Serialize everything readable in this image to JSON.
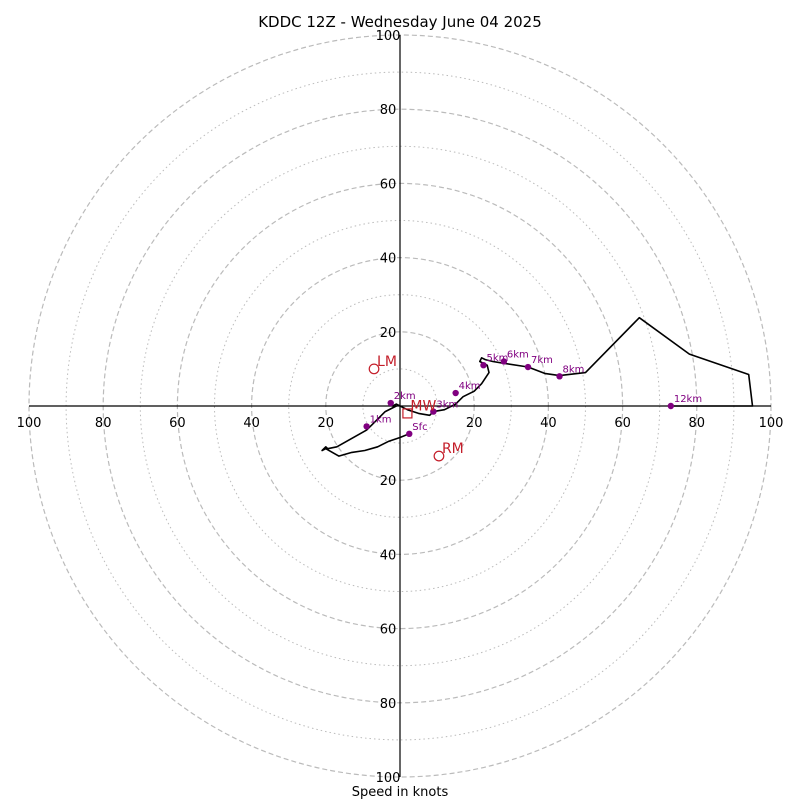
{
  "chart_data": {
    "type": "line",
    "title": "KDDC 12Z - Wednesday June 04 2025",
    "xlabel": "Speed in knots",
    "range": [
      -100,
      100
    ],
    "grid": {
      "major_rings": [
        20,
        40,
        60,
        80,
        100
      ],
      "minor_rings": [
        10,
        30,
        50,
        70,
        90
      ]
    },
    "tick_labels": {
      "x": [
        "100",
        "80",
        "60",
        "40",
        "20",
        "20",
        "40",
        "60",
        "80",
        "100"
      ],
      "y": [
        "100",
        "80",
        "60",
        "40",
        "20",
        "20",
        "40",
        "60",
        "80",
        "100"
      ]
    },
    "tick_values": [
      -100,
      -80,
      -60,
      -40,
      -20,
      20,
      40,
      60,
      80,
      100
    ],
    "hodograph": {
      "x": [
        2.5,
        0,
        -3,
        -6,
        -9.5,
        -13,
        -16.5,
        -20,
        -21,
        -20,
        -19.5,
        -17,
        -9,
        -7.5,
        -4,
        -1,
        -2,
        -1,
        2,
        5,
        8,
        9,
        12,
        15,
        17,
        20,
        22,
        24,
        23.5,
        21.5,
        22,
        23,
        25,
        28,
        34.5,
        39,
        43,
        50,
        64.5,
        78,
        94,
        95,
        86,
        73
      ],
      "y": [
        -7.5,
        -8.5,
        -9.5,
        -11,
        -12,
        -12.5,
        -13.5,
        -11.5,
        -12,
        -11,
        -11.5,
        -11,
        -6.5,
        -5,
        -1.5,
        0,
        0,
        0.5,
        -1,
        -2,
        -2.5,
        -1.5,
        -1,
        0.5,
        2.5,
        4,
        6,
        9,
        11,
        12,
        13,
        12.5,
        12,
        11.5,
        10.5,
        8.8,
        8.2,
        9,
        23.8,
        14,
        8.5,
        0,
        0,
        0
      ]
    },
    "height_markers": [
      {
        "label": "Sfc",
        "x": 2.5,
        "y": -7.5
      },
      {
        "label": "1km",
        "x": -9,
        "y": -5.5
      },
      {
        "label": "2km",
        "x": -2.5,
        "y": 0.8
      },
      {
        "label": "3km",
        "x": 9,
        "y": -1.5
      },
      {
        "label": "4km",
        "x": 15,
        "y": 3.5
      },
      {
        "label": "5km",
        "x": 22.5,
        "y": 11
      },
      {
        "label": "6km",
        "x": 28,
        "y": 12
      },
      {
        "label": "7km",
        "x": 34.5,
        "y": 10.5
      },
      {
        "label": "8km",
        "x": 43,
        "y": 8
      },
      {
        "label": "12km",
        "x": 73,
        "y": 0
      }
    ],
    "storm_motions": [
      {
        "label": "LM",
        "x": -7,
        "y": 10,
        "shape": "circle"
      },
      {
        "label": "RM",
        "x": 10.5,
        "y": -13.5,
        "shape": "circle"
      },
      {
        "label": "MW",
        "x": 2,
        "y": -2,
        "shape": "square"
      }
    ],
    "colors": {
      "line": "#000000",
      "markers": "#800080",
      "storm_motion": "#c41e2a",
      "grid": "#bbbbbb"
    }
  }
}
